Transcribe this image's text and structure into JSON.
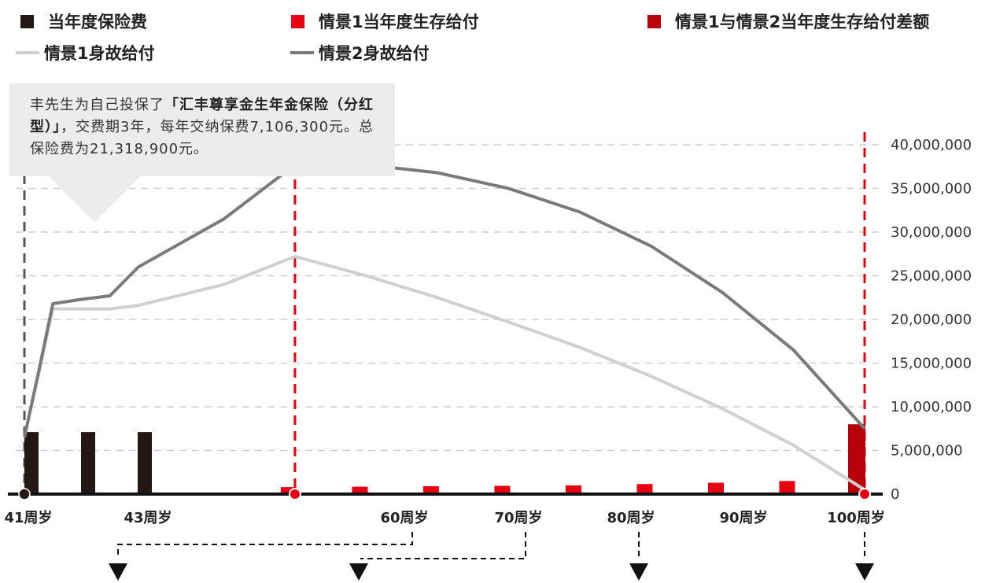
{
  "legend": {
    "premium": "当年度保险费",
    "s1_survival": "情景1当年度生存给付",
    "diff": "情景1与情景2当年度生存给付差额",
    "s1_death": "情景1身故给付",
    "s2_death": "情景2身故给付"
  },
  "colors": {
    "premium": "#231815",
    "s1_survival": "#e60012",
    "diff": "#b8000b",
    "s1_death": "#d0d0d0",
    "s2_death": "#7a7a7a",
    "axis": "#111111",
    "marker_red": "#e60012"
  },
  "callout": {
    "line1_prefix": "丰先生为自己投保了",
    "product": "「汇丰尊享金生年金保险（分红型）」",
    "line2_suffix": "，交费期3年，每年交纳保费7,106,300元。总保险费为21,318,900元。"
  },
  "chart_data": {
    "type": "bar+line",
    "ylim": [
      0,
      40000000
    ],
    "xlim": [
      41,
      100
    ],
    "y_ticks": [
      "0",
      "5,000,000",
      "10,000,000",
      "15,000,000",
      "20,000,000",
      "25,000,000",
      "30,000,000",
      "35,000,000",
      "40,000,000"
    ],
    "y_tick_values": [
      0,
      5000000,
      10000000,
      15000000,
      20000000,
      25000000,
      30000000,
      35000000,
      40000000
    ],
    "x_ticks": [
      "41周岁",
      "43周岁",
      "60周岁",
      "70周岁",
      "80周岁",
      "90周岁",
      "100周岁"
    ],
    "x_tick_values": [
      41,
      43,
      60,
      70,
      80,
      90,
      100
    ],
    "premium_bars": {
      "x": [
        41,
        42,
        43
      ],
      "values": [
        7106300,
        7106300,
        7106300
      ]
    },
    "s1_survival_bars": {
      "x": [
        60,
        65,
        70,
        75,
        80,
        85,
        90,
        95
      ],
      "values": [
        800000,
        850000,
        900000,
        950000,
        1000000,
        1150000,
        1300000,
        1500000
      ]
    },
    "diff_bar": {
      "x": [
        100
      ],
      "values": [
        8000000
      ]
    },
    "s1_death_line": {
      "x": [
        41,
        42,
        43,
        45,
        47,
        49,
        55,
        60,
        65,
        70,
        75,
        80,
        85,
        90,
        95,
        100
      ],
      "values": [
        6500000,
        13800000,
        21200000,
        21200000,
        21200000,
        21600000,
        24000000,
        27200000,
        25000000,
        22500000,
        19700000,
        16800000,
        13500000,
        9800000,
        5600000,
        500000
      ]
    },
    "s2_death_line": {
      "x": [
        41,
        42,
        43,
        45,
        47,
        49,
        55,
        60,
        65,
        70,
        75,
        80,
        85,
        90,
        95,
        100
      ],
      "values": [
        6500000,
        14000000,
        21800000,
        22300000,
        22700000,
        26000000,
        31500000,
        37700000,
        37700000,
        36800000,
        35000000,
        32300000,
        28400000,
        23100000,
        16500000,
        7500000
      ]
    }
  }
}
